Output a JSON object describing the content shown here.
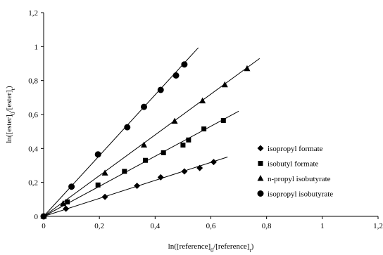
{
  "chart_data": {
    "type": "scatter",
    "title": "",
    "xlabel": "ln([reference]0/[reference]t)",
    "ylabel": "ln([ester]0/[ester]t)",
    "xlim": [
      0,
      1.2
    ],
    "ylim": [
      0,
      1.2
    ],
    "x_ticks": [
      "0",
      "0,2",
      "0,4",
      "0,6",
      "0,8",
      "1",
      "1,2"
    ],
    "y_ticks": [
      "0",
      "0,2",
      "0,4",
      "0,6",
      "0,8",
      "1",
      "1,2"
    ],
    "grid": false,
    "legend_position": "right",
    "series": [
      {
        "name": "isopropyl formate",
        "marker": "diamond",
        "points": [
          [
            0,
            0
          ],
          [
            0.08,
            0.045
          ],
          [
            0.22,
            0.115
          ],
          [
            0.335,
            0.18
          ],
          [
            0.42,
            0.23
          ],
          [
            0.505,
            0.265
          ],
          [
            0.56,
            0.285
          ],
          [
            0.61,
            0.32
          ]
        ],
        "fit": {
          "slope": 0.53,
          "x_end": 0.66
        }
      },
      {
        "name": "isobutyl formate",
        "marker": "square",
        "points": [
          [
            0,
            0
          ],
          [
            0.085,
            0.085
          ],
          [
            0.195,
            0.185
          ],
          [
            0.29,
            0.265
          ],
          [
            0.365,
            0.33
          ],
          [
            0.43,
            0.375
          ],
          [
            0.5,
            0.42
          ],
          [
            0.52,
            0.45
          ],
          [
            0.575,
            0.515
          ],
          [
            0.645,
            0.565
          ]
        ],
        "fit": {
          "slope": 0.885,
          "x_end": 0.7
        }
      },
      {
        "name": "n-propyl isobutyrate",
        "marker": "triangle",
        "points": [
          [
            0,
            0
          ],
          [
            0.07,
            0.075
          ],
          [
            0.22,
            0.255
          ],
          [
            0.36,
            0.42
          ],
          [
            0.47,
            0.56
          ],
          [
            0.57,
            0.68
          ],
          [
            0.65,
            0.775
          ],
          [
            0.73,
            0.87
          ]
        ],
        "fit": {
          "slope": 1.2,
          "x_end": 0.775
        }
      },
      {
        "name": "isopropyl isobutyrate",
        "marker": "circle",
        "points": [
          [
            0,
            0
          ],
          [
            0.1,
            0.175
          ],
          [
            0.195,
            0.365
          ],
          [
            0.3,
            0.525
          ],
          [
            0.36,
            0.645
          ],
          [
            0.42,
            0.745
          ],
          [
            0.475,
            0.83
          ],
          [
            0.505,
            0.895
          ]
        ],
        "fit": {
          "slope": 1.79,
          "x_end": 0.555
        }
      }
    ]
  }
}
